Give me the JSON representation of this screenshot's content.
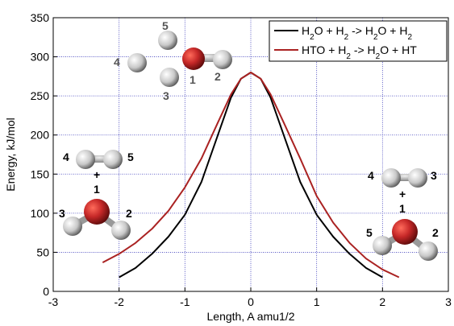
{
  "chart_data": {
    "type": "line",
    "xlabel": "Length, A amu1/2",
    "ylabel": "Energy, kJ/mol",
    "xlim": [
      -3,
      3
    ],
    "ylim": [
      0,
      350
    ],
    "xticks": [
      "-3",
      "-2",
      "-1",
      "0",
      "1",
      "2",
      "3"
    ],
    "yticks": [
      "0",
      "50",
      "100",
      "150",
      "200",
      "250",
      "300",
      "350"
    ],
    "grid": true,
    "legend_position": "top-right",
    "series": [
      {
        "name": "H2O + H2 -> H2O + H2",
        "legend": {
          "parts": [
            [
              "H",
              "n"
            ],
            [
              "2",
              "s"
            ],
            [
              "O + H",
              "n"
            ],
            [
              "2",
              "s"
            ],
            [
              " -> H",
              "n"
            ],
            [
              "2",
              "s"
            ],
            [
              "O + H",
              "n"
            ],
            [
              "2",
              "s"
            ]
          ]
        },
        "color": "#000000",
        "x": [
          -2.0,
          -1.75,
          -1.5,
          -1.25,
          -1.0,
          -0.75,
          -0.5,
          -0.3,
          -0.15,
          0.0,
          0.15,
          0.3,
          0.5,
          0.75,
          1.0,
          1.25,
          1.5,
          1.75,
          2.0
        ],
        "y": [
          18,
          30,
          48,
          70,
          98,
          140,
          200,
          248,
          272,
          280,
          272,
          248,
          200,
          140,
          98,
          70,
          48,
          30,
          18
        ]
      },
      {
        "name": "HTO + H2 -> H2O + HT",
        "legend": {
          "parts": [
            [
              "HTO + H",
              "n"
            ],
            [
              "2",
              "s"
            ],
            [
              " -> H",
              "n"
            ],
            [
              "2",
              "s"
            ],
            [
              "O + HT",
              "n"
            ]
          ]
        },
        "color": "#aa2222",
        "x": [
          -2.25,
          -2.0,
          -1.75,
          -1.5,
          -1.25,
          -1.0,
          -0.75,
          -0.5,
          -0.3,
          -0.15,
          0.0,
          0.15,
          0.3,
          0.5,
          0.75,
          1.0,
          1.25,
          1.5,
          1.75,
          2.0,
          2.25
        ],
        "y": [
          37,
          48,
          62,
          80,
          103,
          133,
          170,
          216,
          252,
          272,
          280,
          272,
          252,
          216,
          170,
          122,
          88,
          62,
          42,
          28,
          18
        ]
      }
    ]
  },
  "annotations": {
    "top_molecule": {
      "labels": [
        "5",
        "4",
        "1",
        "2",
        "3"
      ]
    },
    "left_molecule": {
      "labels": [
        "4",
        "5",
        "+",
        "1",
        "3",
        "2"
      ]
    },
    "right_molecule": {
      "labels": [
        "4",
        "3",
        "+",
        "1",
        "5",
        "2"
      ]
    }
  },
  "colors": {
    "grid": "#3b3bbb",
    "oxygen": "#b71c1c",
    "hydrogen": "#d9d9d9"
  }
}
